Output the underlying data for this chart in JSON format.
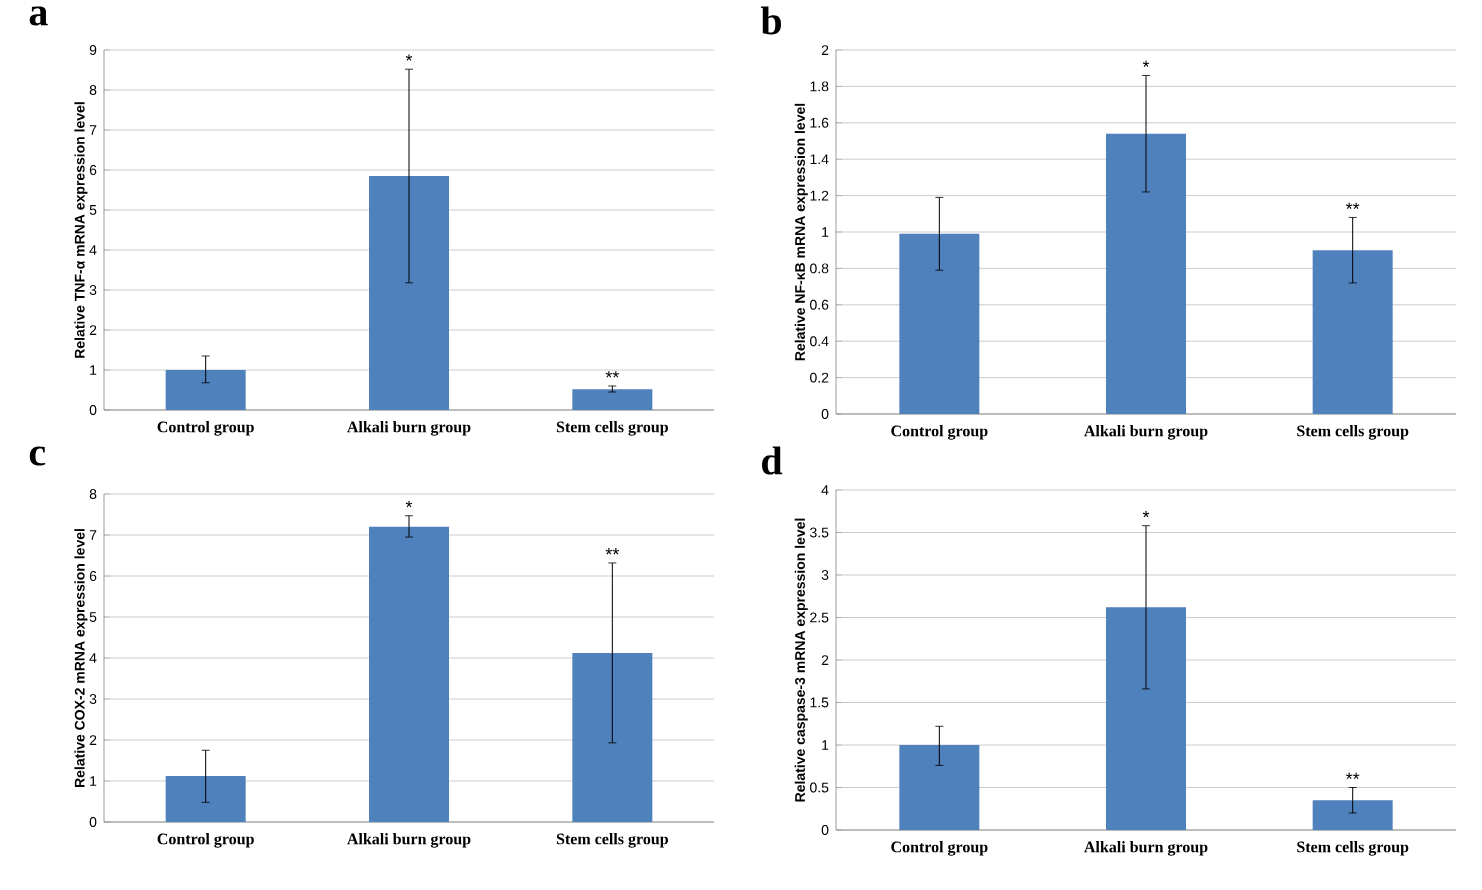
{
  "chart_data": [
    {
      "type": "bar",
      "title": "a",
      "ylabel": "Relative TNF-α mRNA expression level",
      "categories": [
        "Control group",
        "Alkali burn group",
        "Stem cells group"
      ],
      "values": [
        1.0,
        5.85,
        0.52
      ],
      "errors": [
        [
          0.68,
          1.35
        ],
        [
          3.18,
          8.52
        ],
        [
          0.45,
          0.6
        ]
      ],
      "color": "#4f81bd",
      "ylim": [
        0,
        9
      ],
      "yticks": [
        0,
        1,
        2,
        3,
        4,
        5,
        6,
        7,
        8,
        9
      ],
      "grid": "y",
      "annotations": [
        {
          "text": "*",
          "x": "Alkali burn group",
          "y": 8.52
        },
        {
          "text": "**",
          "x": "Stem cells group",
          "y": 0.6
        }
      ]
    },
    {
      "type": "bar",
      "title": "b",
      "ylabel": "Relative NF-κB mRNA expression level",
      "categories": [
        "Control group",
        "Alkali burn group",
        "Stem cells group"
      ],
      "values": [
        0.99,
        1.54,
        0.9
      ],
      "errors": [
        [
          0.79,
          1.19
        ],
        [
          1.22,
          1.86
        ],
        [
          0.72,
          1.08
        ]
      ],
      "color": "#4f81bd",
      "ylim": [
        0,
        2
      ],
      "yticks": [
        0,
        0.2,
        0.4,
        0.6,
        0.8,
        1,
        1.2,
        1.4,
        1.6,
        1.8,
        2
      ],
      "grid": "y",
      "annotations": [
        {
          "text": "*",
          "x": "Alkali burn group",
          "y": 1.86
        },
        {
          "text": "**",
          "x": "Stem cells group",
          "y": 1.08
        }
      ]
    },
    {
      "type": "bar",
      "title": "c",
      "ylabel": "Relative COX-2 mRNA expression level",
      "categories": [
        "Control group",
        "Alkali burn group",
        "Stem cells group"
      ],
      "values": [
        1.12,
        7.2,
        4.12
      ],
      "errors": [
        [
          0.48,
          1.75
        ],
        [
          6.95,
          7.47
        ],
        [
          1.93,
          6.32
        ]
      ],
      "color": "#4f81bd",
      "ylim": [
        0,
        8
      ],
      "yticks": [
        0,
        1,
        2,
        3,
        4,
        5,
        6,
        7,
        8
      ],
      "grid": "y",
      "annotations": [
        {
          "text": "*",
          "x": "Alkali burn group",
          "y": 7.47
        },
        {
          "text": "**",
          "x": "Stem cells group",
          "y": 6.32
        }
      ]
    },
    {
      "type": "bar",
      "title": "d",
      "ylabel": "Relative caspase-3 mRNA expression level",
      "categories": [
        "Control group",
        "Alkali burn group",
        "Stem cells group"
      ],
      "values": [
        1.0,
        2.62,
        0.35
      ],
      "errors": [
        [
          0.76,
          1.22
        ],
        [
          1.66,
          3.58
        ],
        [
          0.2,
          0.5
        ]
      ],
      "color": "#4f81bd",
      "ylim": [
        0,
        4
      ],
      "yticks": [
        0,
        0.5,
        1,
        1.5,
        2,
        2.5,
        3,
        3.5,
        4
      ],
      "grid": "y",
      "annotations": [
        {
          "text": "*",
          "x": "Alkali burn group",
          "y": 3.58
        },
        {
          "text": "**",
          "x": "Stem cells group",
          "y": 0.5
        }
      ]
    }
  ]
}
